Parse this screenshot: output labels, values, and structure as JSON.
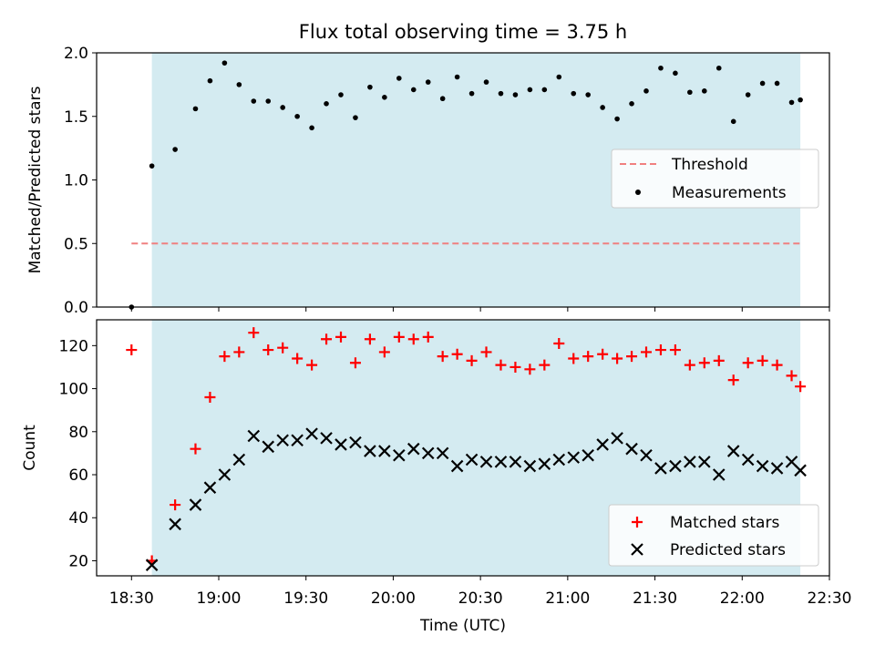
{
  "chart_data": [
    {
      "type": "scatter",
      "title": "Flux total observing time = 3.75 h",
      "xlabel": "",
      "ylabel": "Matched/Predicted stars",
      "ylim": [
        0,
        2.0
      ],
      "yticks": [
        "0.0",
        "0.5",
        "1.0",
        "1.5",
        "2.0"
      ],
      "shaded_region": {
        "x_start": "18:37",
        "x_end": "22:20",
        "color": "#d4ebf1"
      },
      "legend": "center-right",
      "series": [
        {
          "name": "Threshold",
          "kind": "dashed-line",
          "color": "#f08080",
          "x": [
            "18:30",
            "22:20"
          ],
          "values": [
            0.5,
            0.5
          ]
        },
        {
          "name": "Measurements",
          "kind": "dots",
          "color": "#000000",
          "x": [
            "18:30",
            "18:37",
            "18:45",
            "18:52",
            "18:57",
            "19:02",
            "19:07",
            "19:12",
            "19:17",
            "19:22",
            "19:27",
            "19:32",
            "19:37",
            "19:42",
            "19:47",
            "19:52",
            "19:57",
            "20:02",
            "20:07",
            "20:12",
            "20:17",
            "20:22",
            "20:27",
            "20:32",
            "20:37",
            "20:42",
            "20:47",
            "20:52",
            "20:57",
            "21:02",
            "21:07",
            "21:12",
            "21:17",
            "21:22",
            "21:27",
            "21:32",
            "21:37",
            "21:42",
            "21:47",
            "21:52",
            "21:57",
            "22:02",
            "22:07",
            "22:12",
            "22:17",
            "22:20"
          ],
          "values": [
            0.0,
            1.11,
            1.24,
            1.56,
            1.78,
            1.92,
            1.75,
            1.62,
            1.62,
            1.57,
            1.5,
            1.41,
            1.6,
            1.67,
            1.49,
            1.73,
            1.65,
            1.8,
            1.71,
            1.77,
            1.64,
            1.81,
            1.68,
            1.77,
            1.68,
            1.67,
            1.71,
            1.71,
            1.81,
            1.68,
            1.67,
            1.57,
            1.48,
            1.6,
            1.7,
            1.88,
            1.84,
            1.69,
            1.7,
            1.88,
            1.46,
            1.67,
            1.76,
            1.76,
            1.61,
            1.63
          ]
        }
      ]
    },
    {
      "type": "scatter",
      "title": "",
      "xlabel": "Time (UTC)",
      "ylabel": "Count",
      "ylim": [
        13,
        132
      ],
      "yticks": [
        "20",
        "40",
        "60",
        "80",
        "100",
        "120"
      ],
      "xticks": [
        "18:30",
        "19:00",
        "19:30",
        "20:00",
        "20:30",
        "21:00",
        "21:30",
        "22:00",
        "22:30"
      ],
      "xlim": [
        "18:18",
        "22:30"
      ],
      "shaded_region": {
        "x_start": "18:37",
        "x_end": "22:20",
        "color": "#d4ebf1"
      },
      "legend": "bottom-right",
      "series": [
        {
          "name": "Matched stars",
          "marker": "plus",
          "color": "#ff0000",
          "x": [
            "18:30",
            "18:37",
            "18:45",
            "18:52",
            "18:57",
            "19:02",
            "19:07",
            "19:12",
            "19:17",
            "19:22",
            "19:27",
            "19:32",
            "19:37",
            "19:42",
            "19:47",
            "19:52",
            "19:57",
            "20:02",
            "20:07",
            "20:12",
            "20:17",
            "20:22",
            "20:27",
            "20:32",
            "20:37",
            "20:42",
            "20:47",
            "20:52",
            "20:57",
            "21:02",
            "21:07",
            "21:12",
            "21:17",
            "21:22",
            "21:27",
            "21:32",
            "21:37",
            "21:42",
            "21:47",
            "21:52",
            "21:57",
            "22:02",
            "22:07",
            "22:12",
            "22:17",
            "22:20"
          ],
          "values": [
            118,
            20,
            46,
            72,
            96,
            115,
            117,
            126,
            118,
            119,
            114,
            111,
            123,
            124,
            112,
            123,
            117,
            124,
            123,
            124,
            115,
            116,
            113,
            117,
            111,
            110,
            109,
            111,
            121,
            114,
            115,
            116,
            114,
            115,
            117,
            118,
            118,
            111,
            112,
            113,
            104,
            112,
            113,
            111,
            106,
            101
          ]
        },
        {
          "name": "Predicted stars",
          "marker": "x",
          "color": "#000000",
          "x": [
            "18:37",
            "18:45",
            "18:52",
            "18:57",
            "19:02",
            "19:07",
            "19:12",
            "19:17",
            "19:22",
            "19:27",
            "19:32",
            "19:37",
            "19:42",
            "19:47",
            "19:52",
            "19:57",
            "20:02",
            "20:07",
            "20:12",
            "20:17",
            "20:22",
            "20:27",
            "20:32",
            "20:37",
            "20:42",
            "20:47",
            "20:52",
            "20:57",
            "21:02",
            "21:07",
            "21:12",
            "21:17",
            "21:22",
            "21:27",
            "21:32",
            "21:37",
            "21:42",
            "21:47",
            "21:52",
            "21:57",
            "22:02",
            "22:07",
            "22:12",
            "22:17",
            "22:20"
          ],
          "values": [
            18,
            37,
            46,
            54,
            60,
            67,
            78,
            73,
            76,
            76,
            79,
            77,
            74,
            75,
            71,
            71,
            69,
            72,
            70,
            70,
            64,
            67,
            66,
            66,
            66,
            64,
            65,
            67,
            68,
            69,
            74,
            77,
            72,
            69,
            63,
            64,
            66,
            66,
            60,
            71,
            67,
            64,
            63,
            66,
            62
          ]
        }
      ]
    }
  ]
}
